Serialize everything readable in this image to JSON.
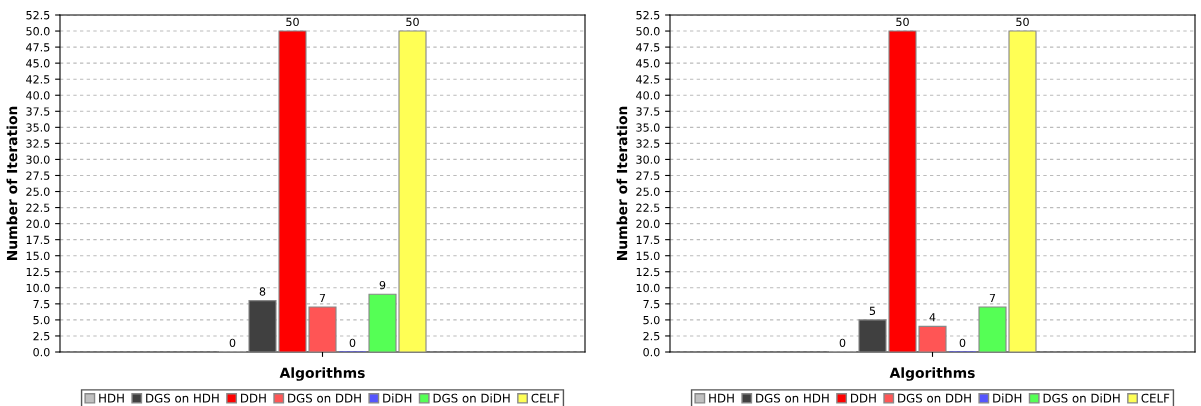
{
  "chart_data": [
    {
      "type": "bar",
      "xlabel": "Algorithms",
      "ylabel": "Number of Iteration",
      "categories": [
        null
      ],
      "series": [
        {
          "name": "HDH",
          "color": "#c0c0c0",
          "values": [
            0
          ]
        },
        {
          "name": "DGS on HDH",
          "color": "#404040",
          "values": [
            8
          ]
        },
        {
          "name": "DDH",
          "color": "#ff0000",
          "values": [
            50
          ]
        },
        {
          "name": "DGS on DDH",
          "color": "#ff5555",
          "values": [
            7
          ]
        },
        {
          "name": "DiDH",
          "color": "#5555ff",
          "values": [
            0
          ]
        },
        {
          "name": "DGS on DiDH",
          "color": "#55ff55",
          "values": [
            9
          ]
        },
        {
          "name": "CELF",
          "color": "#ffff55",
          "values": [
            50
          ]
        }
      ],
      "ylim": [
        0,
        52.5
      ],
      "yticks": [
        {
          "value": 0,
          "label": "0.0"
        },
        {
          "value": 2.5,
          "label": "2.5"
        },
        {
          "value": 5,
          "label": "5.0"
        },
        {
          "value": 7.5,
          "label": "7.5"
        },
        {
          "value": 10,
          "label": "10.0"
        },
        {
          "value": 12.5,
          "label": "12.5"
        },
        {
          "value": 15,
          "label": "15.0"
        },
        {
          "value": 17.5,
          "label": "17.5"
        },
        {
          "value": 20,
          "label": "20.0"
        },
        {
          "value": 22.5,
          "label": "22.5"
        },
        {
          "value": 25,
          "label": "25.0"
        },
        {
          "value": 27.5,
          "label": "27.5"
        },
        {
          "value": 30,
          "label": "30.0"
        },
        {
          "value": 32.5,
          "label": "32.5"
        },
        {
          "value": 35,
          "label": "35.0"
        },
        {
          "value": 37.5,
          "label": "37.5"
        },
        {
          "value": 40,
          "label": "40.0"
        },
        {
          "value": 42.5,
          "label": "42.5"
        },
        {
          "value": 45,
          "label": "45.0"
        },
        {
          "value": 47.5,
          "label": "47.5"
        },
        {
          "value": 50,
          "label": "50.0"
        },
        {
          "value": 52.5,
          "label": "52.5"
        }
      ],
      "grid": "y",
      "legend": "bottom",
      "data_labels": true
    },
    {
      "type": "bar",
      "xlabel": "Algorithms",
      "ylabel": "Number of Iteration",
      "categories": [
        null
      ],
      "series": [
        {
          "name": "HDH",
          "color": "#c0c0c0",
          "values": [
            0
          ]
        },
        {
          "name": "DGS on HDH",
          "color": "#404040",
          "values": [
            5
          ]
        },
        {
          "name": "DDH",
          "color": "#ff0000",
          "values": [
            50
          ]
        },
        {
          "name": "DGS on DDH",
          "color": "#ff5555",
          "values": [
            4
          ]
        },
        {
          "name": "DiDH",
          "color": "#5555ff",
          "values": [
            0
          ]
        },
        {
          "name": "DGS on DiDH",
          "color": "#55ff55",
          "values": [
            7
          ]
        },
        {
          "name": "CELF",
          "color": "#ffff55",
          "values": [
            50
          ]
        }
      ],
      "ylim": [
        0,
        52.5
      ],
      "yticks": [
        {
          "value": 0,
          "label": "0.0"
        },
        {
          "value": 2.5,
          "label": "2.5"
        },
        {
          "value": 5,
          "label": "5.0"
        },
        {
          "value": 7.5,
          "label": "7.5"
        },
        {
          "value": 10,
          "label": "10.0"
        },
        {
          "value": 12.5,
          "label": "12.5"
        },
        {
          "value": 15,
          "label": "15.0"
        },
        {
          "value": 17.5,
          "label": "17.5"
        },
        {
          "value": 20,
          "label": "20.0"
        },
        {
          "value": 22.5,
          "label": "22.5"
        },
        {
          "value": 25,
          "label": "25.0"
        },
        {
          "value": 27.5,
          "label": "27.5"
        },
        {
          "value": 30,
          "label": "30.0"
        },
        {
          "value": 32.5,
          "label": "32.5"
        },
        {
          "value": 35,
          "label": "35.0"
        },
        {
          "value": 37.5,
          "label": "37.5"
        },
        {
          "value": 40,
          "label": "40.0"
        },
        {
          "value": 42.5,
          "label": "42.5"
        },
        {
          "value": 45,
          "label": "45.0"
        },
        {
          "value": 47.5,
          "label": "47.5"
        },
        {
          "value": 50,
          "label": "50.0"
        },
        {
          "value": 52.5,
          "label": "52.5"
        }
      ],
      "grid": "y",
      "legend": "bottom",
      "data_labels": true
    }
  ]
}
